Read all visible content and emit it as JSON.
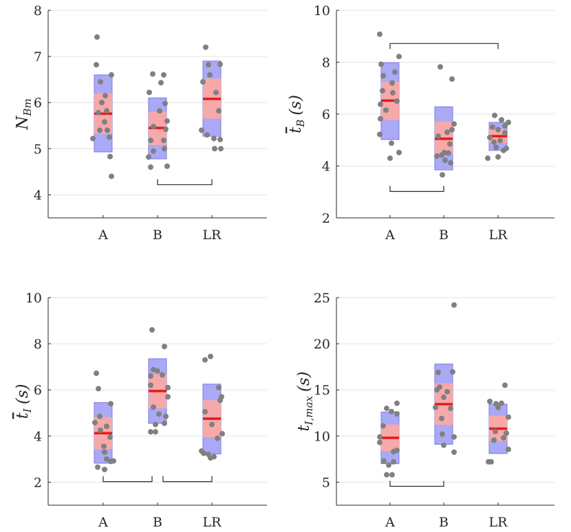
{
  "colors": {
    "iqr_box": "#a9a9f5",
    "iqr_border": "#7a7ae6",
    "ci_box": "#f7a8a8",
    "mean_line": "#e61a1a",
    "points": "#808080",
    "grid": "#e3e3e3",
    "axis": "#262626",
    "bracket": "#262626"
  },
  "chart_data": [
    {
      "type": "box-scatter",
      "ylabel": {
        "main": "N",
        "sub": "Bm",
        "overbar": false
      },
      "categories": [
        "A",
        "B",
        "LR"
      ],
      "ylim": [
        3.5,
        8
      ],
      "yticks": [
        "4",
        "5",
        "6",
        "7",
        "8"
      ],
      "ytick_values": [
        4,
        5,
        6,
        7,
        8
      ],
      "groups": [
        {
          "category": "A",
          "iqr": [
            4.93,
            6.6
          ],
          "ci": [
            5.32,
            6.2
          ],
          "mean": 5.76,
          "points": [
            [
              -0.09,
              7.42
            ],
            [
              0.12,
              6.6
            ],
            [
              -0.1,
              6.82
            ],
            [
              -0.04,
              6.45
            ],
            [
              0.03,
              6.15
            ],
            [
              -0.02,
              6.0
            ],
            [
              0.05,
              5.82
            ],
            [
              -0.07,
              5.78
            ],
            [
              0.02,
              5.58
            ],
            [
              0.06,
              5.4
            ],
            [
              -0.05,
              5.4
            ],
            [
              0.09,
              5.25
            ],
            [
              -0.15,
              5.22
            ],
            [
              0.1,
              4.83
            ],
            [
              0.12,
              4.4
            ]
          ]
        },
        {
          "category": "B",
          "iqr": [
            4.78,
            6.1
          ],
          "ci": [
            5.08,
            5.8
          ],
          "mean": 5.45,
          "points": [
            [
              -0.07,
              6.62
            ],
            [
              0.09,
              6.6
            ],
            [
              0.05,
              6.43
            ],
            [
              -0.12,
              6.22
            ],
            [
              0.11,
              5.98
            ],
            [
              0.03,
              5.82
            ],
            [
              0.14,
              5.6
            ],
            [
              -0.06,
              5.48
            ],
            [
              0.12,
              5.42
            ],
            [
              0.09,
              5.18
            ],
            [
              -0.1,
              5.18
            ],
            [
              0.1,
              5.0
            ],
            [
              -0.06,
              4.95
            ],
            [
              -0.13,
              4.82
            ],
            [
              0.14,
              4.62
            ],
            [
              -0.1,
              4.6
            ]
          ]
        },
        {
          "category": "LR",
          "iqr": [
            5.27,
            6.9
          ],
          "ci": [
            5.65,
            6.52
          ],
          "mean": 6.08,
          "points": [
            [
              -0.09,
              7.2
            ],
            [
              0.12,
              6.83
            ],
            [
              -0.05,
              6.82
            ],
            [
              -0.03,
              6.6
            ],
            [
              -0.13,
              6.45
            ],
            [
              0.06,
              6.22
            ],
            [
              0.1,
              5.82
            ],
            [
              -0.15,
              5.4
            ],
            [
              -0.07,
              5.3
            ],
            [
              0.03,
              5.22
            ],
            [
              0.12,
              5.2
            ],
            [
              0.04,
              5.0
            ],
            [
              0.13,
              5.0
            ]
          ]
        }
      ],
      "significance": [
        [
          "B",
          "LR"
        ]
      ],
      "bracket_level": 4.22
    },
    {
      "type": "box-scatter",
      "ylabel": {
        "main": "t",
        "sub": "B",
        "unit": "(s)",
        "overbar": true
      },
      "categories": [
        "A",
        "B",
        "LR"
      ],
      "ylim": [
        2,
        10
      ],
      "yticks": [
        "2",
        "4",
        "6",
        "8",
        "10"
      ],
      "ytick_values": [
        2,
        4,
        6,
        8,
        10
      ],
      "groups": [
        {
          "category": "A",
          "iqr": [
            5.02,
            7.98
          ],
          "ci": [
            5.78,
            7.25
          ],
          "mean": 6.52,
          "points": [
            [
              -0.15,
              9.08
            ],
            [
              0.13,
              8.22
            ],
            [
              -0.13,
              7.92
            ],
            [
              0.07,
              7.62
            ],
            [
              -0.1,
              7.48
            ],
            [
              0.03,
              7.2
            ],
            [
              -0.11,
              6.9
            ],
            [
              0.04,
              6.82
            ],
            [
              0.1,
              6.5
            ],
            [
              -0.14,
              6.38
            ],
            [
              -0.06,
              6.15
            ],
            [
              -0.14,
              5.82
            ],
            [
              -0.15,
              5.22
            ],
            [
              0.02,
              4.88
            ],
            [
              0.13,
              4.52
            ],
            [
              0.0,
              4.3
            ]
          ]
        },
        {
          "category": "B",
          "iqr": [
            3.85,
            6.28
          ],
          "ci": [
            4.45,
            5.72
          ],
          "mean": 5.05,
          "points": [
            [
              -0.05,
              7.82
            ],
            [
              0.12,
              7.35
            ],
            [
              0.15,
              5.62
            ],
            [
              0.12,
              5.4
            ],
            [
              0.05,
              5.3
            ],
            [
              -0.08,
              5.15
            ],
            [
              0.09,
              4.85
            ],
            [
              0.01,
              4.52
            ],
            [
              0.07,
              4.5
            ],
            [
              -0.03,
              4.42
            ],
            [
              -0.1,
              4.38
            ],
            [
              0.02,
              4.22
            ],
            [
              0.1,
              4.12
            ],
            [
              -0.02,
              3.66
            ]
          ]
        },
        {
          "category": "LR",
          "iqr": [
            4.6,
            5.68
          ],
          "ci": [
            4.88,
            5.42
          ],
          "mean": 5.15,
          "points": [
            [
              -0.05,
              5.95
            ],
            [
              0.05,
              5.78
            ],
            [
              0.15,
              5.68
            ],
            [
              0.1,
              5.55
            ],
            [
              -0.08,
              5.5
            ],
            [
              0.0,
              5.4
            ],
            [
              0.1,
              5.28
            ],
            [
              -0.12,
              5.1
            ],
            [
              0.03,
              4.98
            ],
            [
              -0.06,
              4.92
            ],
            [
              -0.03,
              4.72
            ],
            [
              0.12,
              4.68
            ],
            [
              0.08,
              4.6
            ],
            [
              0.0,
              4.35
            ],
            [
              -0.15,
              4.3
            ]
          ]
        }
      ],
      "significance": [
        [
          "A",
          "LR"
        ],
        [
          "A",
          "B"
        ]
      ],
      "bracket_level": [
        8.72,
        3.02
      ]
    },
    {
      "type": "box-scatter",
      "ylabel": {
        "main": "t",
        "sub": "I",
        "unit": "(s)",
        "overbar": true
      },
      "categories": [
        "A",
        "B",
        "LR"
      ],
      "ylim": [
        1,
        10
      ],
      "yticks": [
        "2",
        "4",
        "6",
        "8",
        "10"
      ],
      "ytick_values": [
        2,
        4,
        6,
        8,
        10
      ],
      "groups": [
        {
          "category": "A",
          "iqr": [
            2.82,
            5.45
          ],
          "ci": [
            3.42,
            4.82
          ],
          "mean": 4.12,
          "points": [
            [
              -0.1,
              6.72
            ],
            [
              -0.07,
              6.05
            ],
            [
              0.11,
              5.4
            ],
            [
              -0.05,
              4.85
            ],
            [
              -0.12,
              4.58
            ],
            [
              0.05,
              4.42
            ],
            [
              -0.04,
              4.25
            ],
            [
              0.1,
              3.95
            ],
            [
              0.01,
              3.55
            ],
            [
              0.02,
              3.3
            ],
            [
              0.05,
              3.0
            ],
            [
              0.15,
              2.92
            ],
            [
              0.11,
              2.9
            ],
            [
              -0.08,
              2.65
            ],
            [
              0.02,
              2.55
            ]
          ]
        },
        {
          "category": "B",
          "iqr": [
            4.55,
            7.35
          ],
          "ci": [
            5.2,
            6.68
          ],
          "mean": 5.95,
          "points": [
            [
              -0.08,
              8.6
            ],
            [
              0.1,
              7.88
            ],
            [
              -0.06,
              6.88
            ],
            [
              0.0,
              6.82
            ],
            [
              0.07,
              6.65
            ],
            [
              -0.1,
              6.6
            ],
            [
              -0.1,
              6.2
            ],
            [
              0.15,
              6.1
            ],
            [
              0.15,
              5.7
            ],
            [
              -0.06,
              5.25
            ],
            [
              0.02,
              4.95
            ],
            [
              0.12,
              4.85
            ],
            [
              0.1,
              4.55
            ],
            [
              -0.03,
              4.5
            ],
            [
              -0.1,
              4.18
            ],
            [
              -0.03,
              4.18
            ]
          ]
        },
        {
          "category": "LR",
          "iqr": [
            3.22,
            6.25
          ],
          "ci": [
            3.95,
            5.55
          ],
          "mean": 4.75,
          "points": [
            [
              -0.02,
              7.45
            ],
            [
              -0.1,
              7.3
            ],
            [
              0.1,
              6.1
            ],
            [
              0.14,
              5.7
            ],
            [
              0.12,
              5.55
            ],
            [
              -0.1,
              5.05
            ],
            [
              0.0,
              4.5
            ],
            [
              0.15,
              4.1
            ],
            [
              0.08,
              3.9
            ],
            [
              -0.15,
              3.35
            ],
            [
              -0.12,
              3.25
            ],
            [
              -0.05,
              3.2
            ],
            [
              0.03,
              3.1
            ],
            [
              -0.02,
              3.05
            ]
          ]
        }
      ],
      "significance": [
        [
          "A",
          "B"
        ],
        [
          "B",
          "LR"
        ]
      ],
      "bracket_level": 2.02
    },
    {
      "type": "box-scatter",
      "ylabel": {
        "main": "t",
        "sub": "I,max",
        "unit": "(s)",
        "overbar": false
      },
      "categories": [
        "A",
        "B",
        "LR"
      ],
      "ylim": [
        2.5,
        25
      ],
      "yticks": [
        "5",
        "10",
        "15",
        "20",
        "25"
      ],
      "ytick_values": [
        5,
        10,
        15,
        20,
        25
      ],
      "groups": [
        {
          "category": "A",
          "iqr": [
            7.0,
            12.6
          ],
          "ci": [
            8.35,
            11.25
          ],
          "mean": 9.8,
          "points": [
            [
              0.1,
              13.55
            ],
            [
              -0.05,
              13.0
            ],
            [
              0.02,
              12.65
            ],
            [
              0.1,
              12.4
            ],
            [
              -0.1,
              11.1
            ],
            [
              -0.15,
              9.9
            ],
            [
              -0.15,
              9.3
            ],
            [
              0.1,
              8.45
            ],
            [
              0.05,
              8.3
            ],
            [
              -0.09,
              7.3
            ],
            [
              0.05,
              7.2
            ],
            [
              -0.02,
              6.85
            ],
            [
              -0.05,
              5.8
            ],
            [
              0.03,
              5.8
            ]
          ]
        },
        {
          "category": "B",
          "iqr": [
            9.1,
            17.8
          ],
          "ci": [
            11.2,
            15.7
          ],
          "mean": 13.45,
          "points": [
            [
              0.15,
              24.2
            ],
            [
              -0.08,
              16.9
            ],
            [
              0.13,
              16.95
            ],
            [
              -0.06,
              15.3
            ],
            [
              -0.1,
              15.0
            ],
            [
              0.05,
              14.8
            ],
            [
              0.0,
              14.2
            ],
            [
              -0.12,
              13.1
            ],
            [
              0.1,
              13.0
            ],
            [
              -0.03,
              11.9
            ],
            [
              -0.02,
              10.2
            ],
            [
              0.15,
              9.9
            ],
            [
              0.0,
              9.0
            ],
            [
              0.15,
              8.25
            ]
          ]
        },
        {
          "category": "LR",
          "iqr": [
            8.1,
            13.45
          ],
          "ci": [
            9.45,
            12.2
          ],
          "mean": 10.8,
          "points": [
            [
              0.1,
              15.5
            ],
            [
              -0.12,
              13.75
            ],
            [
              0.05,
              13.55
            ],
            [
              -0.03,
              13.5
            ],
            [
              0.0,
              13.1
            ],
            [
              0.15,
              12.05
            ],
            [
              -0.04,
              10.5
            ],
            [
              0.12,
              10.3
            ],
            [
              0.08,
              9.8
            ],
            [
              -0.06,
              9.55
            ],
            [
              0.15,
              8.55
            ],
            [
              -0.14,
              7.2
            ],
            [
              -0.1,
              7.2
            ]
          ]
        }
      ],
      "significance": [
        [
          "A",
          "B"
        ]
      ],
      "bracket_level": 4.55
    }
  ]
}
